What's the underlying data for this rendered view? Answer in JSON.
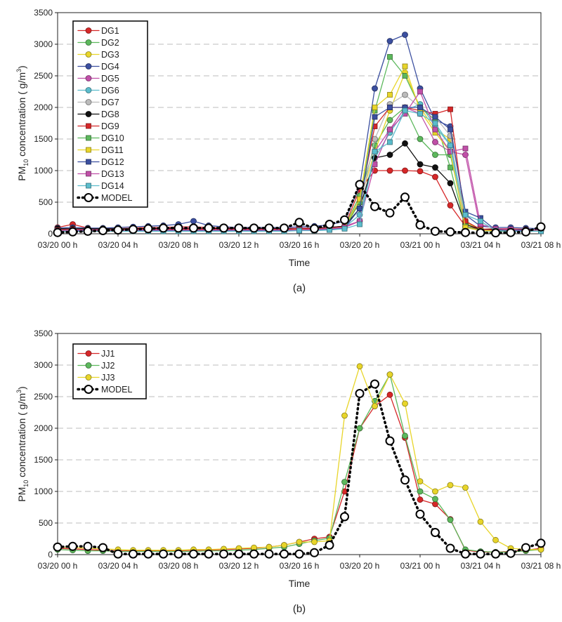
{
  "chart_data": [
    {
      "type": "line",
      "panel_label": "(a)",
      "ylabel_main": "PM",
      "ylabel_sub": "10",
      "ylabel_tail": " concentration (  g/m",
      "ylabel_sup": "3",
      "ylabel_close": ")",
      "xlabel": "Time",
      "ylim": [
        0,
        3500
      ],
      "yticks": [
        "0",
        "500",
        "1000",
        "1500",
        "2000",
        "2500",
        "3000",
        "3500"
      ],
      "xlim": [
        0,
        32
      ],
      "xticks": [
        {
          "x": 0,
          "label": "03/20 00 h"
        },
        {
          "x": 4,
          "label": "03/20 04 h"
        },
        {
          "x": 8,
          "label": "03/20 08 h"
        },
        {
          "x": 12,
          "label": "03/20 12 h"
        },
        {
          "x": 16,
          "label": "03/20 16 h"
        },
        {
          "x": 20,
          "label": "03/20 20 h"
        },
        {
          "x": 24,
          "label": "03/21 00 h"
        },
        {
          "x": 28,
          "label": "03/21 04 h"
        },
        {
          "x": 32,
          "label": "03/21 08 h"
        }
      ],
      "grid": "horizontal dashed",
      "legend_position": "top-left",
      "x": [
        0,
        1,
        2,
        3,
        4,
        5,
        6,
        7,
        8,
        9,
        10,
        11,
        12,
        13,
        14,
        15,
        16,
        17,
        18,
        19,
        20,
        21,
        22,
        23,
        24,
        25,
        26,
        27,
        28,
        29,
        30,
        31,
        32
      ],
      "series": [
        {
          "name": "DG1",
          "color": "#d62728",
          "marker": "circle",
          "values": [
            100,
            150,
            90,
            80,
            80,
            90,
            100,
            100,
            110,
            110,
            100,
            90,
            90,
            90,
            80,
            80,
            90,
            90,
            100,
            120,
            700,
            1000,
            1000,
            1000,
            990,
            900,
            450,
            120,
            70,
            80,
            80,
            70,
            60
          ]
        },
        {
          "name": "DG2",
          "color": "#5cb85c",
          "marker": "circle",
          "values": [
            60,
            70,
            70,
            60,
            60,
            70,
            70,
            80,
            80,
            80,
            70,
            70,
            70,
            70,
            70,
            70,
            70,
            80,
            90,
            110,
            600,
            1400,
            1800,
            2000,
            1500,
            1250,
            1250,
            200,
            70,
            60,
            60,
            50,
            50
          ]
        },
        {
          "name": "DG3",
          "color": "#e8d52a",
          "marker": "circle",
          "values": [
            50,
            60,
            60,
            50,
            50,
            60,
            60,
            60,
            60,
            70,
            60,
            60,
            60,
            60,
            60,
            60,
            70,
            70,
            80,
            100,
            500,
            1300,
            1950,
            2550,
            2000,
            1650,
            1500,
            180,
            60,
            50,
            50,
            50,
            50
          ]
        },
        {
          "name": "DG4",
          "color": "#3b4fa0",
          "marker": "circle",
          "values": [
            90,
            100,
            90,
            90,
            100,
            110,
            120,
            130,
            150,
            200,
            130,
            110,
            100,
            100,
            100,
            100,
            110,
            120,
            140,
            200,
            750,
            2300,
            3050,
            3150,
            2300,
            1800,
            1700,
            300,
            120,
            100,
            100,
            90,
            80
          ]
        },
        {
          "name": "DG5",
          "color": "#c04fa8",
          "marker": "circle",
          "values": [
            70,
            80,
            70,
            70,
            70,
            80,
            80,
            90,
            90,
            90,
            80,
            80,
            80,
            80,
            80,
            80,
            90,
            90,
            100,
            120,
            200,
            1300,
            1650,
            2000,
            1900,
            1450,
            1300,
            1250,
            70,
            70,
            60,
            60,
            60
          ]
        },
        {
          "name": "DG6",
          "color": "#5bbccc",
          "marker": "circle",
          "values": [
            50,
            60,
            60,
            50,
            50,
            60,
            60,
            60,
            60,
            60,
            60,
            60,
            60,
            60,
            60,
            60,
            60,
            70,
            80,
            100,
            300,
            1200,
            1600,
            1950,
            2050,
            1700,
            1400,
            100,
            60,
            50,
            50,
            50,
            50
          ]
        },
        {
          "name": "DG7",
          "color": "#bbbbbb",
          "marker": "circle",
          "values": [
            50,
            50,
            50,
            50,
            50,
            50,
            50,
            50,
            50,
            50,
            50,
            50,
            50,
            50,
            50,
            50,
            60,
            60,
            70,
            90,
            400,
            1500,
            2050,
            2200,
            2000,
            1850,
            1550,
            100,
            50,
            50,
            50,
            50,
            50
          ]
        },
        {
          "name": "DG8",
          "color": "#111111",
          "marker": "circle",
          "values": [
            80,
            80,
            80,
            80,
            80,
            80,
            80,
            80,
            80,
            80,
            80,
            80,
            80,
            80,
            80,
            80,
            80,
            90,
            100,
            120,
            400,
            1200,
            1250,
            1430,
            1100,
            1050,
            800,
            150,
            70,
            70,
            70,
            70,
            60
          ]
        },
        {
          "name": "DG9",
          "color": "#d62728",
          "marker": "square",
          "values": [
            60,
            70,
            60,
            60,
            60,
            70,
            70,
            70,
            70,
            80,
            70,
            70,
            70,
            70,
            70,
            70,
            80,
            80,
            90,
            110,
            500,
            1700,
            2000,
            2000,
            1950,
            1900,
            1970,
            200,
            70,
            60,
            60,
            60,
            60
          ]
        },
        {
          "name": "DG10",
          "color": "#5cb85c",
          "marker": "square",
          "values": [
            40,
            50,
            50,
            40,
            40,
            50,
            50,
            50,
            50,
            50,
            50,
            50,
            50,
            50,
            50,
            50,
            60,
            60,
            70,
            90,
            500,
            1950,
            2800,
            2500,
            2000,
            1800,
            1050,
            120,
            50,
            40,
            40,
            40,
            40
          ]
        },
        {
          "name": "DG11",
          "color": "#e8d52a",
          "marker": "square",
          "values": [
            50,
            60,
            60,
            50,
            50,
            60,
            60,
            60,
            60,
            60,
            60,
            60,
            60,
            60,
            60,
            60,
            60,
            70,
            80,
            100,
            550,
            2000,
            2200,
            2650,
            1950,
            1600,
            1300,
            100,
            50,
            50,
            50,
            50,
            50
          ]
        },
        {
          "name": "DG12",
          "color": "#3b4fa0",
          "marker": "square",
          "values": [
            40,
            50,
            50,
            40,
            40,
            50,
            50,
            50,
            50,
            50,
            50,
            50,
            50,
            50,
            50,
            50,
            60,
            60,
            70,
            90,
            400,
            1850,
            2000,
            2000,
            2000,
            1850,
            1650,
            350,
            250,
            60,
            50,
            50,
            40
          ]
        },
        {
          "name": "DG13",
          "color": "#c04fa8",
          "marker": "square",
          "values": [
            50,
            60,
            60,
            50,
            50,
            60,
            60,
            60,
            60,
            60,
            60,
            60,
            60,
            60,
            60,
            60,
            60,
            70,
            80,
            100,
            200,
            1100,
            1650,
            1900,
            2250,
            1650,
            1300,
            1350,
            150,
            80,
            70,
            60,
            60
          ]
        },
        {
          "name": "DG14",
          "color": "#5bbccc",
          "marker": "square",
          "values": [
            40,
            40,
            40,
            40,
            40,
            40,
            40,
            40,
            40,
            40,
            40,
            40,
            40,
            40,
            40,
            40,
            50,
            50,
            60,
            80,
            150,
            1300,
            1450,
            1950,
            1900,
            1750,
            1400,
            300,
            200,
            50,
            40,
            40,
            40
          ]
        },
        {
          "name": "MODEL",
          "color": "#000000",
          "marker": "open-circle",
          "dotted": true,
          "values": [
            20,
            30,
            40,
            50,
            60,
            70,
            80,
            90,
            90,
            90,
            90,
            90,
            90,
            90,
            90,
            90,
            180,
            80,
            150,
            220,
            780,
            430,
            330,
            580,
            140,
            40,
            30,
            20,
            15,
            15,
            20,
            30,
            110
          ]
        }
      ]
    },
    {
      "type": "line",
      "panel_label": "(b)",
      "ylabel_main": "PM",
      "ylabel_sub": "10",
      "ylabel_tail": " concentration (  g/m",
      "ylabel_sup": "3",
      "ylabel_close": ")",
      "xlabel": "Time",
      "ylim": [
        0,
        3500
      ],
      "yticks": [
        "0",
        "500",
        "1000",
        "1500",
        "2000",
        "2500",
        "3000",
        "3500"
      ],
      "xlim": [
        0,
        32
      ],
      "xticks": [
        {
          "x": 0,
          "label": "03/20 00 h"
        },
        {
          "x": 4,
          "label": "03/20 04 h"
        },
        {
          "x": 8,
          "label": "03/20 08 h"
        },
        {
          "x": 12,
          "label": "03/20 12 h"
        },
        {
          "x": 16,
          "label": "03/20 16 h"
        },
        {
          "x": 20,
          "label": "03/20 20 h"
        },
        {
          "x": 24,
          "label": "03/21 00 h"
        },
        {
          "x": 28,
          "label": "03/21 04 h"
        },
        {
          "x": 32,
          "label": "03/21 08 h"
        }
      ],
      "grid": "horizontal dashed",
      "legend_position": "top-left",
      "x": [
        0,
        1,
        2,
        3,
        4,
        5,
        6,
        7,
        8,
        9,
        10,
        11,
        12,
        13,
        14,
        15,
        16,
        17,
        18,
        19,
        20,
        21,
        22,
        23,
        24,
        25,
        26,
        27,
        28,
        29,
        30,
        31,
        32
      ],
      "series": [
        {
          "name": "JJ1",
          "color": "#d62728",
          "marker": "circle",
          "values": [
            100,
            90,
            80,
            70,
            60,
            60,
            60,
            60,
            60,
            70,
            70,
            80,
            90,
            100,
            120,
            150,
            200,
            250,
            280,
            1000,
            2000,
            2350,
            2530,
            1850,
            870,
            800,
            560,
            70,
            40,
            40,
            50,
            70,
            100
          ]
        },
        {
          "name": "JJ2",
          "color": "#5cb85c",
          "marker": "circle",
          "values": [
            80,
            70,
            60,
            60,
            50,
            50,
            50,
            50,
            50,
            50,
            60,
            60,
            70,
            80,
            100,
            120,
            170,
            220,
            260,
            1150,
            2000,
            2430,
            2850,
            1880,
            1000,
            880,
            550,
            80,
            50,
            40,
            40,
            60,
            80
          ]
        },
        {
          "name": "JJ3",
          "color": "#e8d52a",
          "marker": "circle",
          "values": [
            120,
            110,
            100,
            90,
            80,
            70,
            70,
            70,
            70,
            80,
            80,
            90,
            100,
            110,
            120,
            150,
            200,
            200,
            220,
            2200,
            2980,
            2350,
            2850,
            2390,
            1160,
            1000,
            1100,
            1060,
            520,
            230,
            100,
            80,
            80
          ]
        },
        {
          "name": "MODEL",
          "color": "#000000",
          "marker": "open-circle",
          "dotted": true,
          "values": [
            120,
            130,
            130,
            110,
            10,
            10,
            10,
            10,
            10,
            10,
            10,
            10,
            10,
            10,
            10,
            10,
            10,
            30,
            150,
            600,
            2550,
            2700,
            1800,
            1180,
            640,
            350,
            100,
            10,
            10,
            10,
            20,
            110,
            180
          ]
        }
      ]
    }
  ]
}
